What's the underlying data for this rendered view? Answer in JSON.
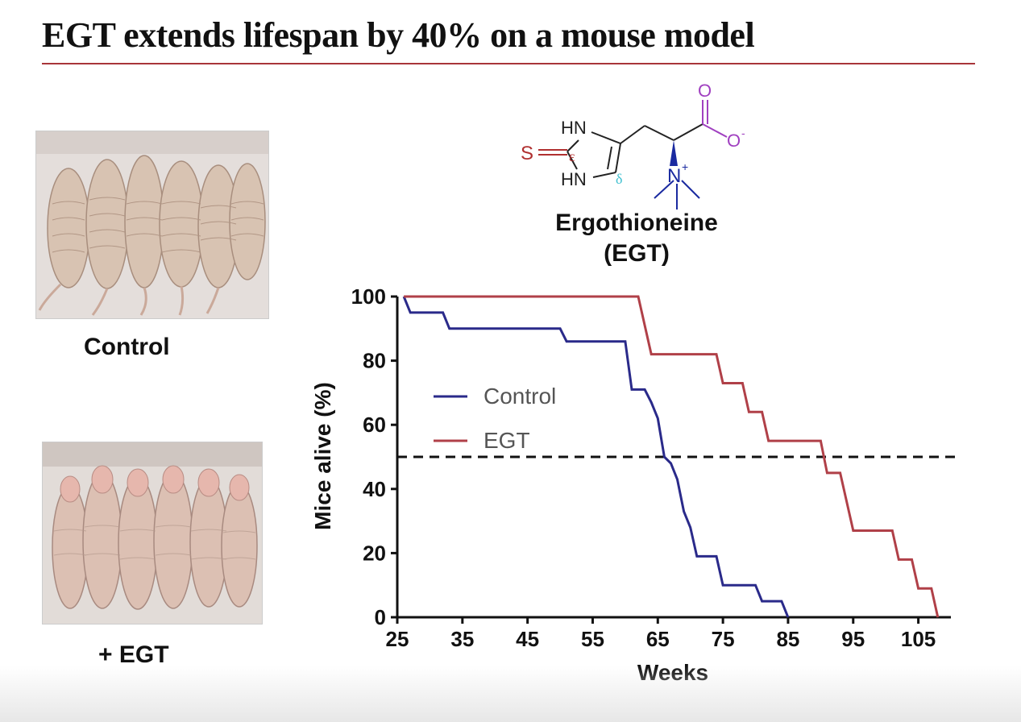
{
  "slide": {
    "title": "EGT extends lifespan by 40% on a mouse model"
  },
  "photos": {
    "control_label": "Control",
    "egt_label": "+ EGT"
  },
  "molecule": {
    "name": "Ergothioneine",
    "abbrev": "(EGT)",
    "atoms": {
      "hn_top": "HN",
      "hn_bottom": "HN",
      "sulfur": "S",
      "epsilon": "ε",
      "delta": "δ",
      "oxygen_top": "O",
      "oxygen_minus": "O",
      "minus": "-",
      "nitrogen": "N",
      "plus": "+"
    },
    "colors": {
      "sulfur": "#b03030",
      "carboxylate": "#a040c0",
      "amine": "#1a2aa0",
      "delta": "#40c0d0",
      "bond": "#222222"
    }
  },
  "chart_data": {
    "type": "line",
    "xlabel": "Weeks",
    "ylabel": "Mice alive (%)",
    "xlim": [
      25,
      110
    ],
    "ylim": [
      0,
      100
    ],
    "xticks": [
      25,
      35,
      45,
      55,
      65,
      75,
      85,
      95,
      105
    ],
    "yticks": [
      0,
      20,
      40,
      60,
      80,
      100
    ],
    "reference_line": {
      "y": 50,
      "style": "dashed"
    },
    "legend_position": "center-left",
    "series": [
      {
        "name": "Control",
        "color": "#2a2a8a",
        "points": [
          [
            26,
            100
          ],
          [
            27,
            95
          ],
          [
            32,
            95
          ],
          [
            33,
            90
          ],
          [
            42,
            90
          ],
          [
            50,
            90
          ],
          [
            51,
            86
          ],
          [
            60,
            86
          ],
          [
            61,
            71
          ],
          [
            63,
            71
          ],
          [
            64,
            67
          ],
          [
            65,
            62
          ],
          [
            66,
            50
          ],
          [
            67,
            48
          ],
          [
            68,
            43
          ],
          [
            69,
            33
          ],
          [
            70,
            28
          ],
          [
            71,
            19
          ],
          [
            74,
            19
          ],
          [
            75,
            10
          ],
          [
            80,
            10
          ],
          [
            81,
            5
          ],
          [
            84,
            5
          ],
          [
            85,
            0
          ]
        ]
      },
      {
        "name": "EGT",
        "color": "#b04048",
        "points": [
          [
            26,
            100
          ],
          [
            62,
            100
          ],
          [
            63,
            91
          ],
          [
            64,
            82
          ],
          [
            74,
            82
          ],
          [
            75,
            73
          ],
          [
            78,
            73
          ],
          [
            79,
            64
          ],
          [
            81,
            64
          ],
          [
            82,
            55
          ],
          [
            90,
            55
          ],
          [
            91,
            45
          ],
          [
            93,
            45
          ],
          [
            94,
            36
          ],
          [
            95,
            27
          ],
          [
            101,
            27
          ],
          [
            102,
            18
          ],
          [
            104,
            18
          ],
          [
            105,
            9
          ],
          [
            107,
            9
          ],
          [
            108,
            0
          ]
        ]
      }
    ]
  }
}
